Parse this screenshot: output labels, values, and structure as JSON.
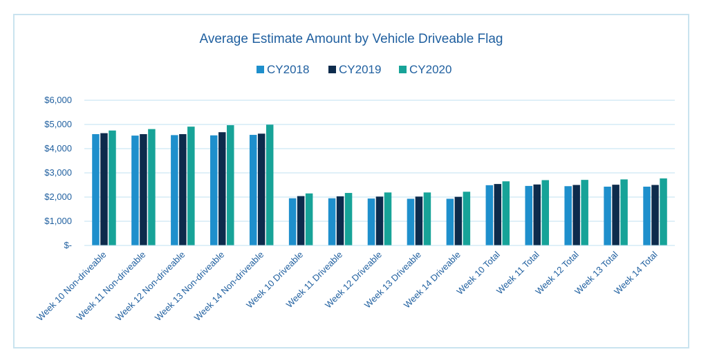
{
  "chart_data": {
    "type": "bar",
    "title": "Average Estimate Amount by Vehicle Driveable Flag",
    "xlabel": "",
    "ylabel": "",
    "ylim": [
      0,
      6000
    ],
    "yticks": [
      0,
      1000,
      2000,
      3000,
      4000,
      5000,
      6000
    ],
    "ytick_labels": [
      "$-",
      "$1,000",
      "$2,000",
      "$3,000",
      "$4,000",
      "$5,000",
      "$6,000"
    ],
    "grid": true,
    "legend_position": "top-center",
    "categories": [
      "Week 10 Non-driveable",
      "Week 11 Non-driveable",
      "Week 12 Non-driveable",
      "Week 13 Non-driveable",
      "Week 14 Non-driveable",
      "Week 10 Driveable",
      "Week 11 Driveable",
      "Week 12 Driveable",
      "Week 13 Driveable",
      "Week 14 Driveable",
      "Week 10 Total",
      "Week 11 Total",
      "Week 12 Total",
      "Week 13 Total",
      "Week 14 Total"
    ],
    "series": [
      {
        "name": "CY2018",
        "color": "#1e8fcc",
        "values": [
          4600,
          4540,
          4560,
          4550,
          4570,
          1950,
          1950,
          1940,
          1930,
          1930,
          2490,
          2460,
          2450,
          2430,
          2430
        ]
      },
      {
        "name": "CY2019",
        "color": "#0d2b4c",
        "values": [
          4640,
          4600,
          4600,
          4680,
          4620,
          2040,
          2030,
          2020,
          2020,
          2010,
          2540,
          2520,
          2500,
          2510,
          2500
        ]
      },
      {
        "name": "CY2020",
        "color": "#17a398",
        "values": [
          4750,
          4810,
          4910,
          4970,
          4990,
          2150,
          2170,
          2190,
          2190,
          2220,
          2650,
          2700,
          2710,
          2730,
          2770
        ]
      }
    ]
  }
}
